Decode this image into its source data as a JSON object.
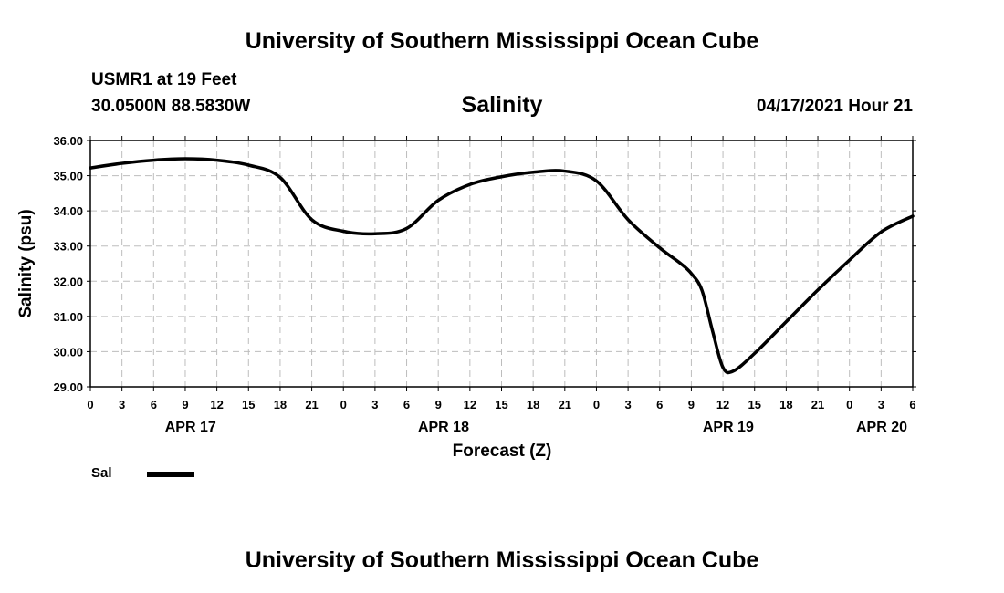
{
  "header": {
    "title": "University of Southern Mississippi Ocean Cube",
    "station": "USMR1 at 19 Feet",
    "coordinates": "30.0500N  88.5830W",
    "chart_title": "Salinity",
    "valid_time": "04/17/2021 Hour 21"
  },
  "footer": {
    "title": "University of Southern Mississippi Ocean Cube"
  },
  "legend": {
    "label": "Sal",
    "color": "#000000"
  },
  "chart_data": {
    "type": "line",
    "title": "Salinity",
    "xlabel": "Forecast (Z)",
    "ylabel": "Salinity (psu)",
    "ylim": [
      29,
      36
    ],
    "xlim": [
      0,
      78
    ],
    "grid": true,
    "y_ticks": [
      "29.00",
      "30.00",
      "31.00",
      "32.00",
      "33.00",
      "34.00",
      "35.00",
      "36.00"
    ],
    "x_ticks": [
      {
        "hour": 0,
        "label": "0"
      },
      {
        "hour": 3,
        "label": "3"
      },
      {
        "hour": 6,
        "label": "6"
      },
      {
        "hour": 9,
        "label": "9"
      },
      {
        "hour": 12,
        "label": "12"
      },
      {
        "hour": 15,
        "label": "15"
      },
      {
        "hour": 18,
        "label": "18"
      },
      {
        "hour": 21,
        "label": "21"
      },
      {
        "hour": 24,
        "label": "0"
      },
      {
        "hour": 27,
        "label": "3"
      },
      {
        "hour": 30,
        "label": "6"
      },
      {
        "hour": 33,
        "label": "9"
      },
      {
        "hour": 36,
        "label": "12"
      },
      {
        "hour": 39,
        "label": "15"
      },
      {
        "hour": 42,
        "label": "18"
      },
      {
        "hour": 45,
        "label": "21"
      },
      {
        "hour": 48,
        "label": "0"
      },
      {
        "hour": 51,
        "label": "3"
      },
      {
        "hour": 54,
        "label": "6"
      },
      {
        "hour": 57,
        "label": "9"
      },
      {
        "hour": 60,
        "label": "12"
      },
      {
        "hour": 63,
        "label": "15"
      },
      {
        "hour": 66,
        "label": "18"
      },
      {
        "hour": 69,
        "label": "21"
      },
      {
        "hour": 72,
        "label": "0"
      },
      {
        "hour": 75,
        "label": "3"
      },
      {
        "hour": 78,
        "label": "6"
      }
    ],
    "day_labels": [
      {
        "hour": 9.5,
        "label": "APR 17"
      },
      {
        "hour": 33.5,
        "label": "APR 18"
      },
      {
        "hour": 60.5,
        "label": "APR 19"
      },
      {
        "hour": 75.5,
        "label": "APR 20"
      }
    ],
    "series": [
      {
        "name": "Sal",
        "x": [
          0,
          3,
          6,
          9,
          12,
          15,
          18,
          21,
          24,
          27,
          30,
          33,
          36,
          39,
          42,
          45,
          48,
          51,
          54,
          56,
          57,
          58,
          59,
          60,
          61,
          63,
          66,
          69,
          72,
          75,
          78
        ],
        "values": [
          35.22,
          35.35,
          35.44,
          35.48,
          35.44,
          35.3,
          34.95,
          33.75,
          33.42,
          33.35,
          33.5,
          34.3,
          34.75,
          34.97,
          35.1,
          35.13,
          34.85,
          33.75,
          32.95,
          32.5,
          32.22,
          31.75,
          30.6,
          29.55,
          29.45,
          29.95,
          30.85,
          31.75,
          32.6,
          33.4,
          33.85
        ]
      }
    ]
  }
}
